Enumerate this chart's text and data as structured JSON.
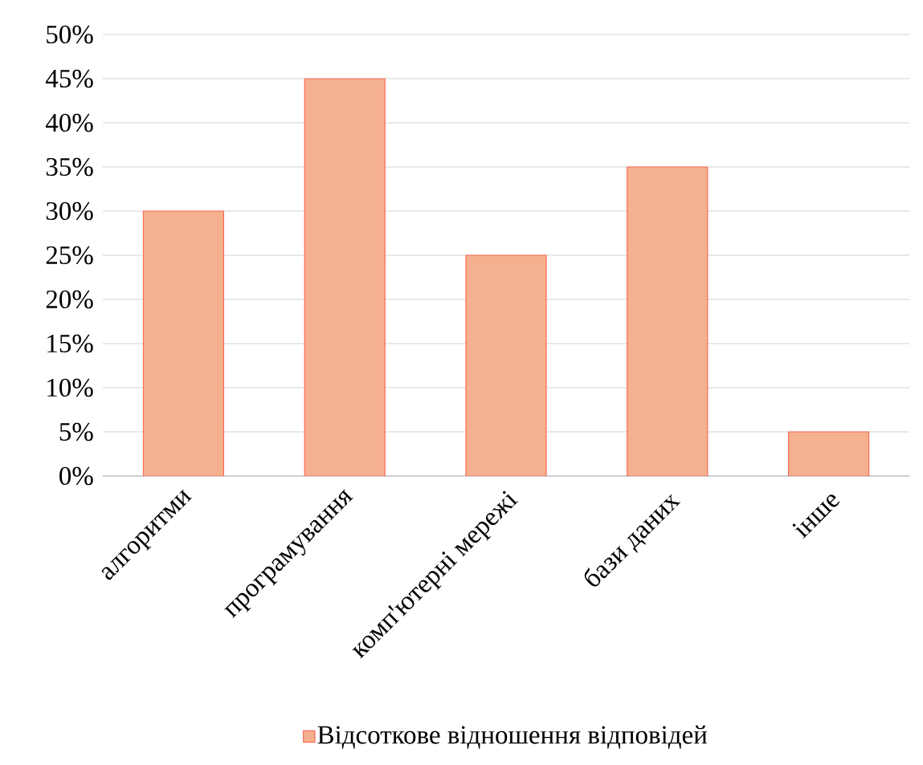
{
  "chart_data": {
    "type": "bar",
    "categories": [
      "алгоритми",
      "програмування",
      "комп'ютерні мережі",
      "бази даних",
      "інше"
    ],
    "series": [
      {
        "name": "Відсоткове відношення відповідей",
        "color": "#f5b08f",
        "values": [
          30,
          45,
          25,
          35,
          5
        ]
      }
    ],
    "ylim": [
      0,
      50
    ],
    "yticks": [
      {
        "value": 0,
        "label": "0%"
      },
      {
        "value": 5,
        "label": "5%"
      },
      {
        "value": 10,
        "label": "10%"
      },
      {
        "value": 15,
        "label": "15%"
      },
      {
        "value": 20,
        "label": "20%"
      },
      {
        "value": 25,
        "label": "25%"
      },
      {
        "value": 30,
        "label": "30%"
      },
      {
        "value": 35,
        "label": "35%"
      },
      {
        "value": 40,
        "label": "40%"
      },
      {
        "value": 45,
        "label": "45%"
      },
      {
        "value": 50,
        "label": "50%"
      }
    ],
    "grid": "y",
    "legend": "bottom"
  }
}
